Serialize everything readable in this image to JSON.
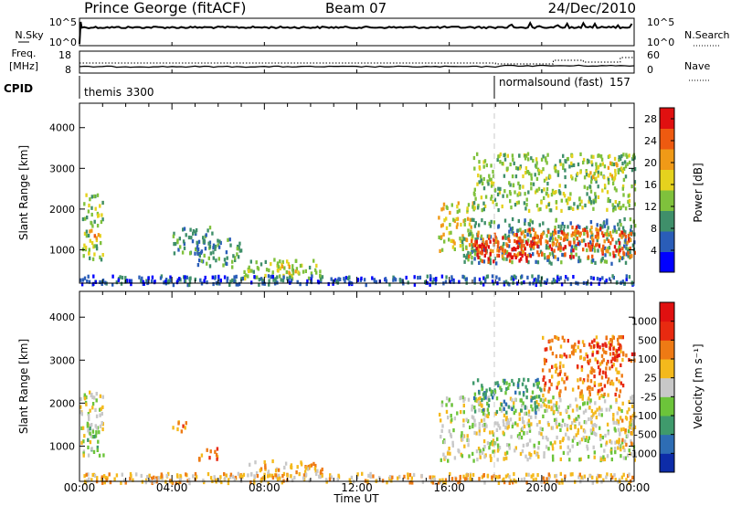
{
  "header": {
    "station": "Prince George (fitACF)",
    "beam": "Beam 07",
    "date": "24/Dec/2010"
  },
  "time_axis": {
    "label": "Time UT",
    "ticks": [
      "00:00",
      "04:00",
      "08:00",
      "12:00",
      "16:00",
      "20:00",
      "00:00"
    ],
    "range_hours": [
      0,
      24
    ]
  },
  "top_panels": {
    "nsky": {
      "left_label": "N.Sky",
      "left_ticks": [
        "10^5",
        "10^0"
      ],
      "right_ticks": [
        "10^5",
        "10^0"
      ],
      "right_label": "N.Search"
    },
    "freq": {
      "left_label": "Freq.",
      "left_unit": "[MHz]",
      "left_ticks": [
        "18",
        "8"
      ],
      "right_ticks": [
        "60",
        "0"
      ],
      "right_label": "Nave"
    },
    "cpid": {
      "label": "CPID",
      "programs": [
        {
          "name": "themis",
          "id": "3300",
          "start_hour": 0
        },
        {
          "name": "normalsound (fast)",
          "id": "157",
          "start_hour": 18
        }
      ]
    }
  },
  "chart_data": [
    {
      "type": "heatmap",
      "quantity": "power",
      "xlabel": "Time UT",
      "ylabel": "Slant Range [km]",
      "x_range_hours": [
        0,
        24
      ],
      "ylim": [
        180,
        4600
      ],
      "yticks": [
        1000,
        2000,
        3000,
        4000
      ],
      "colorbar": {
        "label": "Power [dB]",
        "ticks": [
          "28",
          "24",
          "20",
          "16",
          "12",
          "8",
          "4"
        ],
        "range": [
          0,
          30
        ],
        "colors": [
          "#0000ff",
          "#2a5db8",
          "#3f8f6a",
          "#7fc13c",
          "#e5d21e",
          "#f09a17",
          "#ee5a10",
          "#e01010"
        ]
      },
      "regions": [
        {
          "t": [
            0.1,
            1.0
          ],
          "r": [
            800,
            2400
          ],
          "level": 3
        },
        {
          "t": [
            0.3,
            0.8
          ],
          "r": [
            1300,
            1600
          ],
          "level": 5
        },
        {
          "t": [
            4.0,
            5.8
          ],
          "r": [
            900,
            1600
          ],
          "level": 2
        },
        {
          "t": [
            5.0,
            7.0
          ],
          "r": [
            600,
            1300
          ],
          "level": 2
        },
        {
          "t": [
            7.0,
            10.5
          ],
          "r": [
            300,
            800
          ],
          "level": 3
        },
        {
          "t": [
            8.5,
            9.5
          ],
          "r": [
            450,
            650
          ],
          "level": 4
        },
        {
          "t": [
            0.0,
            24.0
          ],
          "r": [
            180,
            400
          ],
          "level": 1
        },
        {
          "t": [
            15.5,
            17.0
          ],
          "r": [
            1000,
            2200
          ],
          "level": 4
        },
        {
          "t": [
            16.5,
            24.0
          ],
          "r": [
            700,
            1800
          ],
          "level": 2
        },
        {
          "t": [
            16.8,
            24.0
          ],
          "r": [
            850,
            1500
          ],
          "level": 6
        },
        {
          "t": [
            17.0,
            19.5
          ],
          "r": [
            750,
            1250
          ],
          "level": 7
        },
        {
          "t": [
            19.0,
            22.5
          ],
          "r": [
            1100,
            1600
          ],
          "level": 6
        },
        {
          "t": [
            17.0,
            24.0
          ],
          "r": [
            2000,
            3400
          ],
          "level": 3
        },
        {
          "t": [
            22.0,
            23.5
          ],
          "r": [
            2800,
            3200
          ],
          "level": 4
        }
      ]
    },
    {
      "type": "heatmap",
      "quantity": "velocity",
      "xlabel": "Time UT",
      "ylabel": "Slant Range [km]",
      "x_range_hours": [
        0,
        24
      ],
      "ylim": [
        180,
        4600
      ],
      "yticks": [
        1000,
        2000,
        3000,
        4000
      ],
      "colorbar": {
        "label": "Velocity [m s⁻¹]",
        "ticks": [
          "1000",
          "500",
          "100",
          "25",
          "-25",
          "-100",
          "-500",
          "-1000"
        ],
        "colors": [
          "#0d2ca8",
          "#2e6db4",
          "#3f9a6c",
          "#6cc43a",
          "#c8c8c8",
          "#f4b91c",
          "#ee7a14",
          "#e82a10",
          "#e01010"
        ]
      },
      "regions": [
        {
          "t": [
            0.0,
            1.0
          ],
          "r": [
            800,
            2300
          ],
          "level": 4
        },
        {
          "t": [
            0.3,
            0.8
          ],
          "r": [
            900,
            1800
          ],
          "level": 3
        },
        {
          "t": [
            4.0,
            4.7
          ],
          "r": [
            1300,
            1600
          ],
          "level": 6
        },
        {
          "t": [
            5.0,
            6.0
          ],
          "r": [
            700,
            1000
          ],
          "level": 6
        },
        {
          "t": [
            7.3,
            10.5
          ],
          "r": [
            350,
            700
          ],
          "level": 5
        },
        {
          "t": [
            0.0,
            24.0
          ],
          "r": [
            180,
            400
          ],
          "level": 5
        },
        {
          "t": [
            15.5,
            24.0
          ],
          "r": [
            700,
            2200
          ],
          "level": 4
        },
        {
          "t": [
            17.0,
            20.0
          ],
          "r": [
            1800,
            2600
          ],
          "level": 2
        },
        {
          "t": [
            20.0,
            23.5
          ],
          "r": [
            2200,
            3600
          ],
          "level": 6
        },
        {
          "t": [
            22.0,
            24.0
          ],
          "r": [
            3000,
            3400
          ],
          "level": 7
        },
        {
          "t": [
            23.0,
            24.0
          ],
          "r": [
            1000,
            1800
          ],
          "level": 5
        }
      ]
    }
  ],
  "colors": {
    "axis": "#000000",
    "marker_line": "#c8c8c8"
  }
}
